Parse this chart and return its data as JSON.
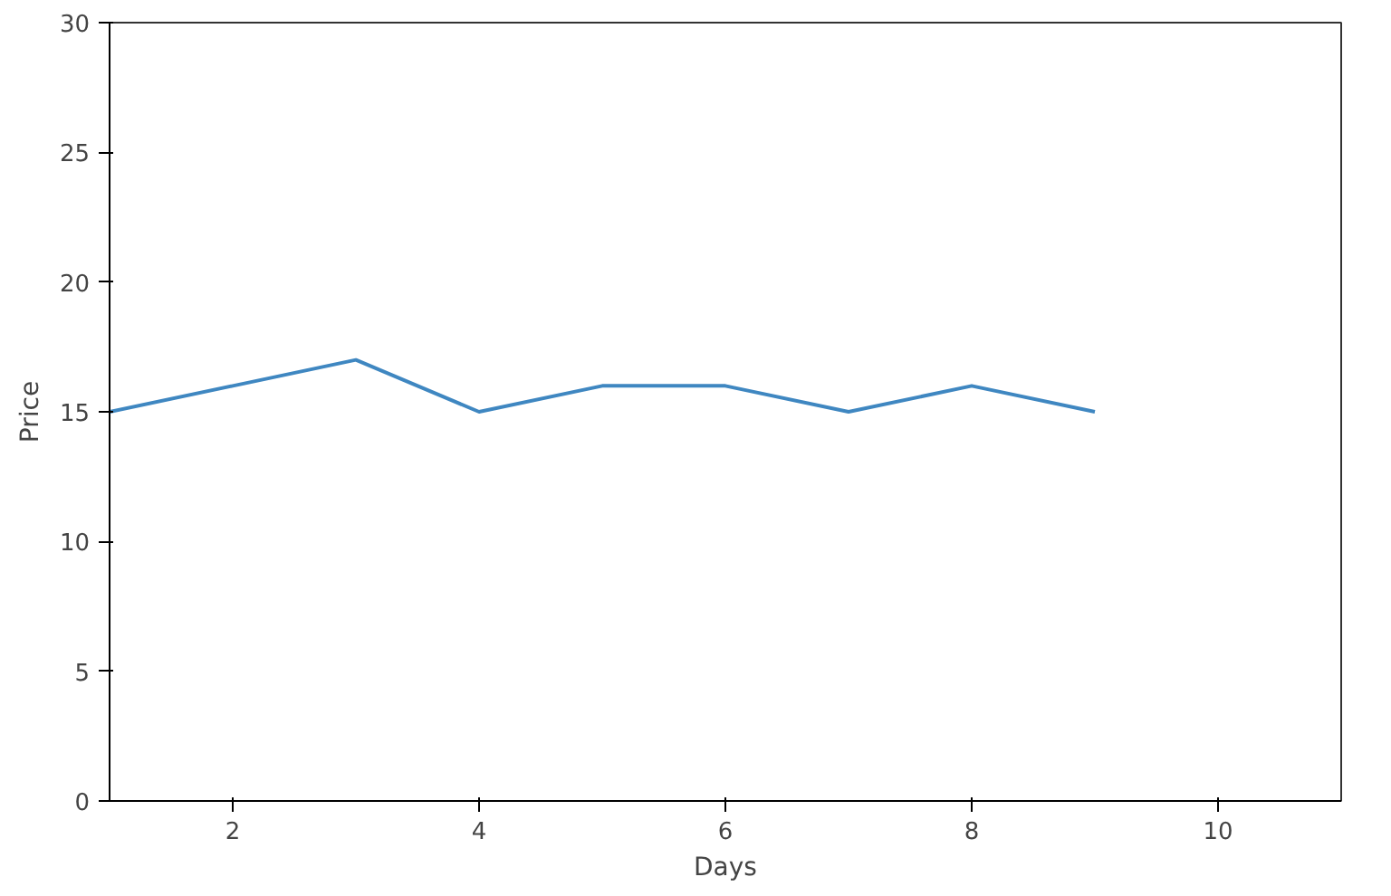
{
  "chart_data": {
    "type": "line",
    "xlabel": "Days",
    "ylabel": "Price",
    "x": [
      1,
      2,
      3,
      4,
      5,
      6,
      7,
      8,
      9
    ],
    "series": [
      {
        "color": "#3f87c1",
        "values": [
          15,
          16,
          17,
          15,
          16,
          16,
          15,
          16,
          15
        ]
      }
    ],
    "xlim": [
      1,
      11
    ],
    "xticks": [
      2,
      4,
      6,
      8,
      10
    ],
    "ylim": [
      0,
      30
    ],
    "yticks": [
      0,
      5,
      10,
      15,
      20,
      25,
      30
    ],
    "grid": false
  }
}
